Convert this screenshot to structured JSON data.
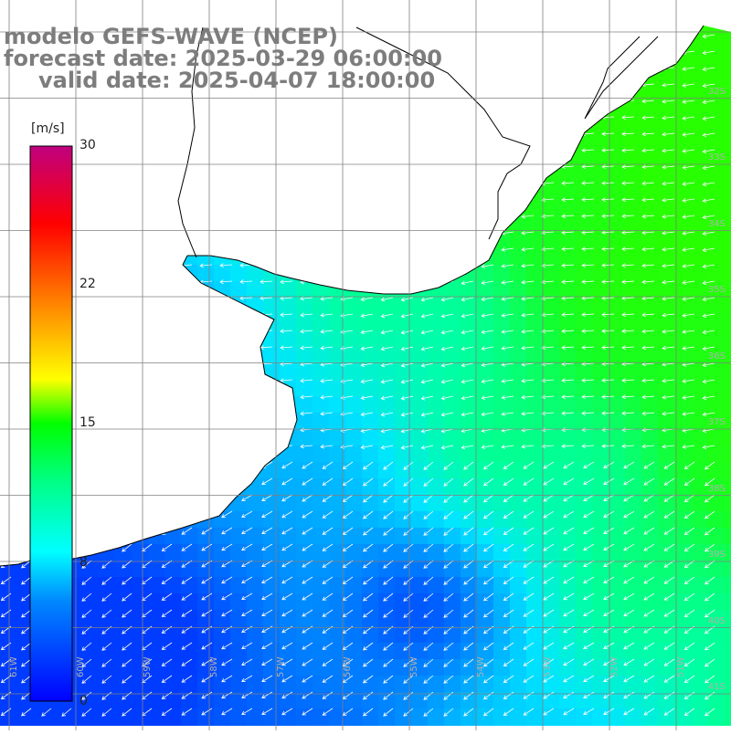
{
  "title": {
    "model": "modelo GEFS-WAVE (NCEP)",
    "forecast": "forecast date: 2025-03-29 06:00:00",
    "valid": "valid date: 2025-04-07 18:00:00"
  },
  "colorbar": {
    "unit": "[m/s]",
    "ticks": [
      "30",
      "22",
      "15",
      "8",
      "0"
    ],
    "min": 0,
    "max": 30,
    "colors": [
      "#0000ff",
      "#00a0ff",
      "#00ffff",
      "#00ff00",
      "#ffff00",
      "#ff8000",
      "#ff0000",
      "#c00080"
    ]
  },
  "grid": {
    "lat_labels": [
      "32S",
      "33S",
      "34S",
      "35S",
      "36S",
      "37S",
      "38S",
      "39S",
      "40S",
      "41S"
    ],
    "lon_labels": [
      "61W",
      "60W",
      "59W",
      "58W",
      "57W",
      "56W",
      "55W",
      "54W",
      "53W",
      "52W",
      "51W"
    ]
  },
  "colors": {
    "land": "#ffffff",
    "coast": "#000000",
    "gridline": "#808080",
    "arrow": "#ffffff",
    "title": "#7d7d7d"
  }
}
